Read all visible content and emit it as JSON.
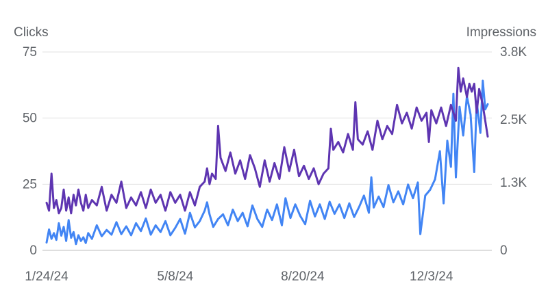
{
  "chart_data": {
    "type": "line",
    "left_axis_title": "Clicks",
    "right_axis_title": "Impressions",
    "left_axis": {
      "min": 0,
      "max": 75,
      "ticks": [
        0,
        25,
        50,
        75
      ],
      "tick_labels": [
        "0",
        "25",
        "50",
        "75"
      ]
    },
    "right_axis": {
      "min": 0,
      "max": 3800,
      "ticks": [
        0,
        1300,
        2500,
        3800
      ],
      "tick_labels": [
        "0",
        "1.3K",
        "2.5K",
        "3.8K"
      ]
    },
    "x_axis": {
      "start": "2024-01-24",
      "end": "2025-01-18",
      "ticks": [
        "2024-01-24",
        "2024-05-08",
        "2024-08-20",
        "2024-12-03"
      ],
      "tick_labels": [
        "1/24/24",
        "5/8/24",
        "8/20/24",
        "12/3/24"
      ]
    },
    "grid": true,
    "legend": "none",
    "series": [
      {
        "axis": "left",
        "color": "#5e35b1",
        "points": [
          [
            "2024-01-24",
            18
          ],
          [
            "2024-01-26",
            15
          ],
          [
            "2024-01-28",
            29
          ],
          [
            "2024-01-30",
            16
          ],
          [
            "2024-02-01",
            19
          ],
          [
            "2024-02-03",
            14
          ],
          [
            "2024-02-05",
            16
          ],
          [
            "2024-02-07",
            23
          ],
          [
            "2024-02-09",
            15
          ],
          [
            "2024-02-11",
            20
          ],
          [
            "2024-02-13",
            14
          ],
          [
            "2024-02-15",
            21
          ],
          [
            "2024-02-17",
            17
          ],
          [
            "2024-02-19",
            23
          ],
          [
            "2024-02-21",
            18
          ],
          [
            "2024-02-23",
            15
          ],
          [
            "2024-02-25",
            21
          ],
          [
            "2024-02-27",
            16
          ],
          [
            "2024-03-01",
            19
          ],
          [
            "2024-03-05",
            17
          ],
          [
            "2024-03-09",
            24
          ],
          [
            "2024-03-13",
            15
          ],
          [
            "2024-03-17",
            21
          ],
          [
            "2024-03-21",
            18
          ],
          [
            "2024-03-25",
            26
          ],
          [
            "2024-03-29",
            16
          ],
          [
            "2024-04-02",
            20
          ],
          [
            "2024-04-06",
            17
          ],
          [
            "2024-04-10",
            22
          ],
          [
            "2024-04-14",
            16
          ],
          [
            "2024-04-18",
            23
          ],
          [
            "2024-04-22",
            18
          ],
          [
            "2024-04-26",
            21
          ],
          [
            "2024-04-30",
            15
          ],
          [
            "2024-05-04",
            22
          ],
          [
            "2024-05-08",
            18
          ],
          [
            "2024-05-12",
            21
          ],
          [
            "2024-05-16",
            15
          ],
          [
            "2024-05-20",
            22
          ],
          [
            "2024-05-24",
            17
          ],
          [
            "2024-05-28",
            24
          ],
          [
            "2024-06-01",
            26
          ],
          [
            "2024-06-03",
            31
          ],
          [
            "2024-06-05",
            25
          ],
          [
            "2024-06-07",
            29
          ],
          [
            "2024-06-10",
            27
          ],
          [
            "2024-06-12",
            47
          ],
          [
            "2024-06-14",
            35
          ],
          [
            "2024-06-18",
            30
          ],
          [
            "2024-06-22",
            37
          ],
          [
            "2024-06-26",
            29
          ],
          [
            "2024-06-30",
            34
          ],
          [
            "2024-07-04",
            27
          ],
          [
            "2024-07-08",
            36
          ],
          [
            "2024-07-12",
            31
          ],
          [
            "2024-07-16",
            24
          ],
          [
            "2024-07-20",
            34
          ],
          [
            "2024-07-24",
            26
          ],
          [
            "2024-07-28",
            33
          ],
          [
            "2024-08-01",
            27
          ],
          [
            "2024-08-05",
            39
          ],
          [
            "2024-08-09",
            30
          ],
          [
            "2024-08-13",
            38
          ],
          [
            "2024-08-17",
            28
          ],
          [
            "2024-08-21",
            32
          ],
          [
            "2024-08-25",
            27
          ],
          [
            "2024-08-29",
            31
          ],
          [
            "2024-09-02",
            25
          ],
          [
            "2024-09-06",
            29
          ],
          [
            "2024-09-10",
            31
          ],
          [
            "2024-09-12",
            46
          ],
          [
            "2024-09-14",
            38
          ],
          [
            "2024-09-18",
            41
          ],
          [
            "2024-09-22",
            37
          ],
          [
            "2024-09-26",
            44
          ],
          [
            "2024-09-30",
            38
          ],
          [
            "2024-10-02",
            56
          ],
          [
            "2024-10-04",
            42
          ],
          [
            "2024-10-08",
            40
          ],
          [
            "2024-10-12",
            45
          ],
          [
            "2024-10-16",
            38
          ],
          [
            "2024-10-20",
            49
          ],
          [
            "2024-10-24",
            42
          ],
          [
            "2024-10-28",
            47
          ],
          [
            "2024-11-01",
            44
          ],
          [
            "2024-11-05",
            55
          ],
          [
            "2024-11-09",
            48
          ],
          [
            "2024-11-13",
            52
          ],
          [
            "2024-11-17",
            46
          ],
          [
            "2024-11-21",
            54
          ],
          [
            "2024-11-25",
            49
          ],
          [
            "2024-11-29",
            52
          ],
          [
            "2024-12-01",
            41
          ],
          [
            "2024-12-03",
            53
          ],
          [
            "2024-12-07",
            48
          ],
          [
            "2024-12-11",
            54
          ],
          [
            "2024-12-15",
            47
          ],
          [
            "2024-12-19",
            55
          ],
          [
            "2024-12-23",
            49
          ],
          [
            "2024-12-25",
            69
          ],
          [
            "2024-12-27",
            60
          ],
          [
            "2024-12-29",
            65
          ],
          [
            "2025-01-01",
            58
          ],
          [
            "2025-01-03",
            63
          ],
          [
            "2025-01-05",
            60
          ],
          [
            "2025-01-07",
            63
          ],
          [
            "2025-01-09",
            52
          ],
          [
            "2025-01-11",
            61
          ],
          [
            "2025-01-14",
            55
          ],
          [
            "2025-01-16",
            49
          ],
          [
            "2025-01-18",
            43
          ]
        ]
      },
      {
        "axis": "right",
        "color": "#4285f4",
        "points": [
          [
            "2024-01-24",
            150
          ],
          [
            "2024-01-26",
            400
          ],
          [
            "2024-01-28",
            220
          ],
          [
            "2024-01-30",
            330
          ],
          [
            "2024-02-01",
            200
          ],
          [
            "2024-02-03",
            520
          ],
          [
            "2024-02-05",
            280
          ],
          [
            "2024-02-07",
            450
          ],
          [
            "2024-02-09",
            180
          ],
          [
            "2024-02-11",
            580
          ],
          [
            "2024-02-13",
            240
          ],
          [
            "2024-02-15",
            350
          ],
          [
            "2024-02-17",
            120
          ],
          [
            "2024-02-19",
            290
          ],
          [
            "2024-02-21",
            180
          ],
          [
            "2024-02-23",
            250
          ],
          [
            "2024-02-25",
            140
          ],
          [
            "2024-02-27",
            330
          ],
          [
            "2024-03-01",
            220
          ],
          [
            "2024-03-05",
            480
          ],
          [
            "2024-03-09",
            270
          ],
          [
            "2024-03-13",
            390
          ],
          [
            "2024-03-17",
            300
          ],
          [
            "2024-03-21",
            540
          ],
          [
            "2024-03-25",
            310
          ],
          [
            "2024-03-29",
            460
          ],
          [
            "2024-04-02",
            290
          ],
          [
            "2024-04-06",
            520
          ],
          [
            "2024-04-10",
            370
          ],
          [
            "2024-04-14",
            610
          ],
          [
            "2024-04-18",
            300
          ],
          [
            "2024-04-22",
            480
          ],
          [
            "2024-04-26",
            350
          ],
          [
            "2024-04-30",
            560
          ],
          [
            "2024-05-04",
            290
          ],
          [
            "2024-05-08",
            430
          ],
          [
            "2024-05-12",
            600
          ],
          [
            "2024-05-16",
            320
          ],
          [
            "2024-05-20",
            720
          ],
          [
            "2024-05-24",
            440
          ],
          [
            "2024-05-28",
            560
          ],
          [
            "2024-06-01",
            760
          ],
          [
            "2024-06-03",
            920
          ],
          [
            "2024-06-05",
            690
          ],
          [
            "2024-06-08",
            450
          ],
          [
            "2024-06-12",
            600
          ],
          [
            "2024-06-16",
            690
          ],
          [
            "2024-06-20",
            480
          ],
          [
            "2024-06-24",
            780
          ],
          [
            "2024-06-28",
            560
          ],
          [
            "2024-07-02",
            720
          ],
          [
            "2024-07-06",
            460
          ],
          [
            "2024-07-10",
            860
          ],
          [
            "2024-07-14",
            600
          ],
          [
            "2024-07-18",
            450
          ],
          [
            "2024-07-22",
            780
          ],
          [
            "2024-07-26",
            580
          ],
          [
            "2024-07-30",
            880
          ],
          [
            "2024-08-03",
            480
          ],
          [
            "2024-08-06",
            1000
          ],
          [
            "2024-08-10",
            620
          ],
          [
            "2024-08-14",
            880
          ],
          [
            "2024-08-18",
            660
          ],
          [
            "2024-08-22",
            500
          ],
          [
            "2024-08-26",
            950
          ],
          [
            "2024-08-30",
            650
          ],
          [
            "2024-09-03",
            880
          ],
          [
            "2024-09-07",
            600
          ],
          [
            "2024-09-11",
            930
          ],
          [
            "2024-09-15",
            700
          ],
          [
            "2024-09-19",
            880
          ],
          [
            "2024-09-23",
            620
          ],
          [
            "2024-09-27",
            900
          ],
          [
            "2024-10-01",
            640
          ],
          [
            "2024-10-05",
            830
          ],
          [
            "2024-10-09",
            1050
          ],
          [
            "2024-10-13",
            720
          ],
          [
            "2024-10-15",
            1400
          ],
          [
            "2024-10-17",
            820
          ],
          [
            "2024-10-21",
            1030
          ],
          [
            "2024-10-25",
            830
          ],
          [
            "2024-10-29",
            1250
          ],
          [
            "2024-11-02",
            920
          ],
          [
            "2024-11-06",
            1130
          ],
          [
            "2024-11-10",
            880
          ],
          [
            "2024-11-14",
            1260
          ],
          [
            "2024-11-18",
            1000
          ],
          [
            "2024-11-22",
            1300
          ],
          [
            "2024-11-24",
            310
          ],
          [
            "2024-11-28",
            1050
          ],
          [
            "2024-12-02",
            1160
          ],
          [
            "2024-12-06",
            1360
          ],
          [
            "2024-12-10",
            1900
          ],
          [
            "2024-12-13",
            900
          ],
          [
            "2024-12-16",
            2100
          ],
          [
            "2024-12-19",
            1600
          ],
          [
            "2024-12-21",
            3000
          ],
          [
            "2024-12-23",
            1400
          ],
          [
            "2024-12-26",
            2750
          ],
          [
            "2024-12-29",
            2200
          ],
          [
            "2025-01-01",
            2950
          ],
          [
            "2025-01-04",
            2600
          ],
          [
            "2025-01-07",
            1500
          ],
          [
            "2025-01-09",
            2850
          ],
          [
            "2025-01-12",
            2250
          ],
          [
            "2025-01-14",
            3250
          ],
          [
            "2025-01-16",
            2700
          ],
          [
            "2025-01-18",
            2800
          ]
        ]
      }
    ]
  }
}
